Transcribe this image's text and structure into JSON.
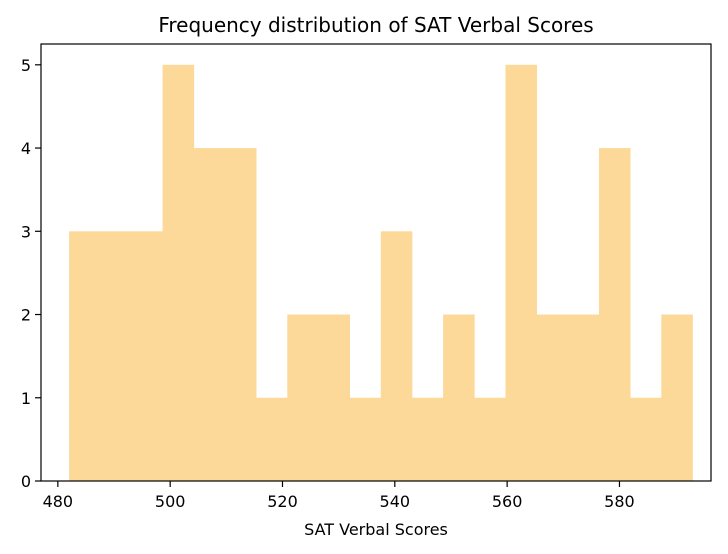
{
  "chart_data": {
    "type": "bar",
    "title": "Frequency distribution of SAT Verbal Scores",
    "xlabel": "SAT Verbal Scores",
    "ylabel": "",
    "bins": {
      "start": 482,
      "width": 5.55,
      "counts": [
        3,
        3,
        3,
        5,
        4,
        4,
        1,
        2,
        2,
        1,
        3,
        1,
        2,
        1,
        5,
        2,
        2,
        4,
        1,
        2
      ]
    },
    "xlim": [
      477,
      596.3
    ],
    "ylim": [
      0,
      5.25
    ],
    "xticks": [
      480,
      500,
      520,
      540,
      560,
      580
    ],
    "yticks": [
      0,
      1,
      2,
      3,
      4,
      5
    ],
    "bar_color": "#fdd999",
    "grid": false,
    "legend": "none"
  }
}
